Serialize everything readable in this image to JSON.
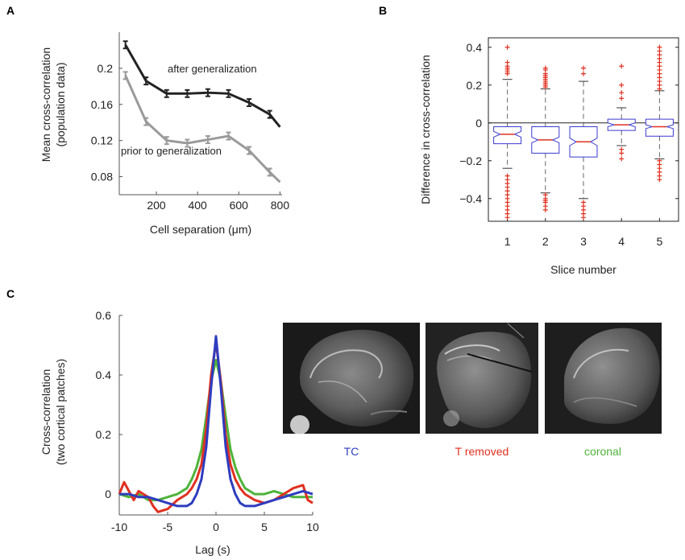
{
  "panels": {
    "A": {
      "letter": "A"
    },
    "B": {
      "letter": "B"
    },
    "C": {
      "letter": "C"
    }
  },
  "chart_data": [
    {
      "id": "A",
      "type": "line",
      "title": "",
      "xlabel": "Cell separation (μm)",
      "ylabel_line1": "Mean cross-correlation",
      "ylabel_line2": "(population data)",
      "xlim": [
        20,
        810
      ],
      "ylim": [
        0.06,
        0.24
      ],
      "xticks": [
        200,
        400,
        600,
        800
      ],
      "xtick_labels": [
        "200",
        "400",
        "600",
        "800"
      ],
      "yticks": [
        0.08,
        0.12,
        0.16,
        0.2
      ],
      "ytick_labels": [
        "0.08",
        "0.12",
        "0.16",
        "0.2"
      ],
      "grid": false,
      "series": [
        {
          "name": "after generalization",
          "color": "#222222",
          "x": [
            50,
            150,
            250,
            350,
            450,
            550,
            650,
            750,
            800
          ],
          "values": [
            0.226,
            0.186,
            0.172,
            0.172,
            0.173,
            0.172,
            0.162,
            0.149,
            0.135
          ],
          "errors": [
            0.004,
            0.004,
            0.004,
            0.004,
            0.004,
            0.004,
            0.004,
            0.004,
            0
          ]
        },
        {
          "name": "prior to generalization",
          "color": "#9a9a9a",
          "x": [
            50,
            150,
            250,
            350,
            450,
            550,
            650,
            750,
            800
          ],
          "values": [
            0.192,
            0.141,
            0.12,
            0.117,
            0.121,
            0.125,
            0.109,
            0.085,
            0.074
          ],
          "errors": [
            0.004,
            0.004,
            0.004,
            0.004,
            0.004,
            0.004,
            0.004,
            0.004,
            0
          ]
        }
      ],
      "annotations": [
        "after generalization",
        "prior to generalization"
      ]
    },
    {
      "id": "B",
      "type": "box",
      "title": "",
      "xlabel": "Slice number",
      "ylabel": "Difference in cross-correlation",
      "categories": [
        "1",
        "2",
        "3",
        "4",
        "5"
      ],
      "ylim": [
        -0.52,
        0.45
      ],
      "yticks": [
        -0.4,
        -0.2,
        0,
        0.2,
        0.4
      ],
      "ytick_labels": [
        "−0.4",
        "−0.2",
        "0",
        "0.2",
        "0.4"
      ],
      "reference_line": 0,
      "boxes": [
        {
          "q1": -0.11,
          "median": -0.06,
          "q3": -0.02,
          "notch_lo": -0.075,
          "notch_hi": -0.045,
          "whisker_lo": -0.24,
          "whisker_hi": 0.23,
          "outliers_hi": [
            0.26,
            0.27,
            0.28,
            0.29,
            0.3,
            0.32,
            0.4
          ],
          "outliers_lo": [
            -0.28,
            -0.3,
            -0.32,
            -0.34,
            -0.36,
            -0.38,
            -0.4,
            -0.42,
            -0.44,
            -0.46,
            -0.48,
            -0.5
          ]
        },
        {
          "q1": -0.16,
          "median": -0.09,
          "q3": -0.02,
          "notch_lo": -0.105,
          "notch_hi": -0.075,
          "whisker_lo": -0.37,
          "whisker_hi": 0.18,
          "outliers_hi": [
            0.19,
            0.2,
            0.21,
            0.22,
            0.23,
            0.24,
            0.25,
            0.26,
            0.28,
            0.29
          ],
          "outliers_lo": [
            -0.38,
            -0.4,
            -0.41,
            -0.42,
            -0.44,
            -0.46
          ]
        },
        {
          "q1": -0.18,
          "median": -0.1,
          "q3": -0.02,
          "notch_lo": -0.12,
          "notch_hi": -0.08,
          "whisker_lo": -0.4,
          "whisker_hi": 0.22,
          "outliers_hi": [
            0.26,
            0.29
          ],
          "outliers_lo": [
            -0.42,
            -0.44,
            -0.46,
            -0.48,
            -0.5
          ]
        },
        {
          "q1": -0.04,
          "median": -0.01,
          "q3": 0.02,
          "notch_lo": -0.02,
          "notch_hi": 0.0,
          "whisker_lo": -0.12,
          "whisker_hi": 0.08,
          "outliers_hi": [
            0.13,
            0.16,
            0.2,
            0.3
          ],
          "outliers_lo": [
            -0.14,
            -0.16,
            -0.19
          ]
        },
        {
          "q1": -0.07,
          "median": -0.02,
          "q3": 0.02,
          "notch_lo": -0.03,
          "notch_hi": -0.01,
          "whisker_lo": -0.19,
          "whisker_hi": 0.17,
          "outliers_hi": [
            0.18,
            0.2,
            0.22,
            0.24,
            0.26,
            0.28,
            0.3,
            0.32,
            0.34,
            0.36,
            0.38,
            0.4
          ],
          "outliers_lo": [
            -0.2,
            -0.22,
            -0.24,
            -0.26,
            -0.28,
            -0.3
          ]
        }
      ]
    },
    {
      "id": "C",
      "type": "line",
      "title": "",
      "xlabel": "Lag (s)",
      "ylabel_line1": "Cross-correlation",
      "ylabel_line2": "(two cortical patches)",
      "xlim": [
        -10,
        10
      ],
      "ylim": [
        -0.07,
        0.6
      ],
      "xticks": [
        -10,
        -5,
        0,
        5,
        10
      ],
      "xtick_labels": [
        "-10",
        "-5",
        "0",
        "5",
        "10"
      ],
      "yticks": [
        0,
        0.2,
        0.4,
        0.6
      ],
      "ytick_labels": [
        "0",
        "0.2",
        "0.4",
        "0.6"
      ],
      "grid": false,
      "series": [
        {
          "name": "TC",
          "color": "#2e3cbf",
          "x": [
            -10,
            -9,
            -8,
            -7,
            -6,
            -5,
            -4,
            -3,
            -2.5,
            -2,
            -1.5,
            -1,
            -0.5,
            0,
            0.5,
            1,
            1.5,
            2,
            2.5,
            3,
            4,
            5,
            6,
            7,
            8,
            9,
            10
          ],
          "values": [
            0.0,
            0.0,
            -0.01,
            -0.01,
            -0.02,
            -0.03,
            -0.04,
            -0.04,
            -0.03,
            0.0,
            0.05,
            0.16,
            0.36,
            0.53,
            0.36,
            0.16,
            0.05,
            0.0,
            -0.03,
            -0.04,
            -0.04,
            -0.03,
            -0.02,
            -0.01,
            0.0,
            0.01,
            0.0
          ]
        },
        {
          "name": "T removed",
          "color": "#e03020",
          "x": [
            -10,
            -9.5,
            -9,
            -8.5,
            -8,
            -7.5,
            -7,
            -6.5,
            -6,
            -5,
            -4,
            -3,
            -2.5,
            -2,
            -1.5,
            -1,
            -0.5,
            0,
            0.5,
            1,
            1.5,
            2,
            2.5,
            3,
            4,
            5,
            6,
            7,
            8,
            9,
            9.5,
            10
          ],
          "values": [
            0.0,
            0.04,
            0.01,
            -0.02,
            0.01,
            0.0,
            -0.01,
            -0.04,
            -0.06,
            -0.05,
            -0.02,
            0.0,
            0.02,
            0.05,
            0.1,
            0.22,
            0.4,
            0.51,
            0.38,
            0.2,
            0.1,
            0.05,
            0.02,
            0.0,
            -0.02,
            -0.03,
            -0.02,
            0.0,
            0.02,
            0.03,
            -0.02,
            -0.03
          ]
        },
        {
          "name": "coronal",
          "color": "#4fb33a",
          "x": [
            -10,
            -9,
            -8,
            -7,
            -6,
            -5,
            -4,
            -3,
            -2.5,
            -2,
            -1.5,
            -1,
            -0.5,
            0,
            0.5,
            1,
            1.5,
            2,
            2.5,
            3,
            4,
            5,
            6,
            7,
            8,
            9,
            10
          ],
          "values": [
            0.0,
            -0.01,
            0.0,
            -0.02,
            -0.02,
            -0.01,
            0.0,
            0.02,
            0.05,
            0.09,
            0.15,
            0.26,
            0.38,
            0.45,
            0.38,
            0.26,
            0.15,
            0.09,
            0.05,
            0.02,
            0.0,
            0.0,
            0.01,
            0.0,
            -0.01,
            -0.01,
            -0.01
          ]
        }
      ]
    }
  ],
  "images": [
    {
      "name": "TC",
      "caption": "TC",
      "color": "#2e3cbf"
    },
    {
      "name": "T removed",
      "caption": "T removed",
      "color": "#e03020"
    },
    {
      "name": "coronal",
      "caption": "coronal",
      "color": "#4fb33a"
    }
  ]
}
